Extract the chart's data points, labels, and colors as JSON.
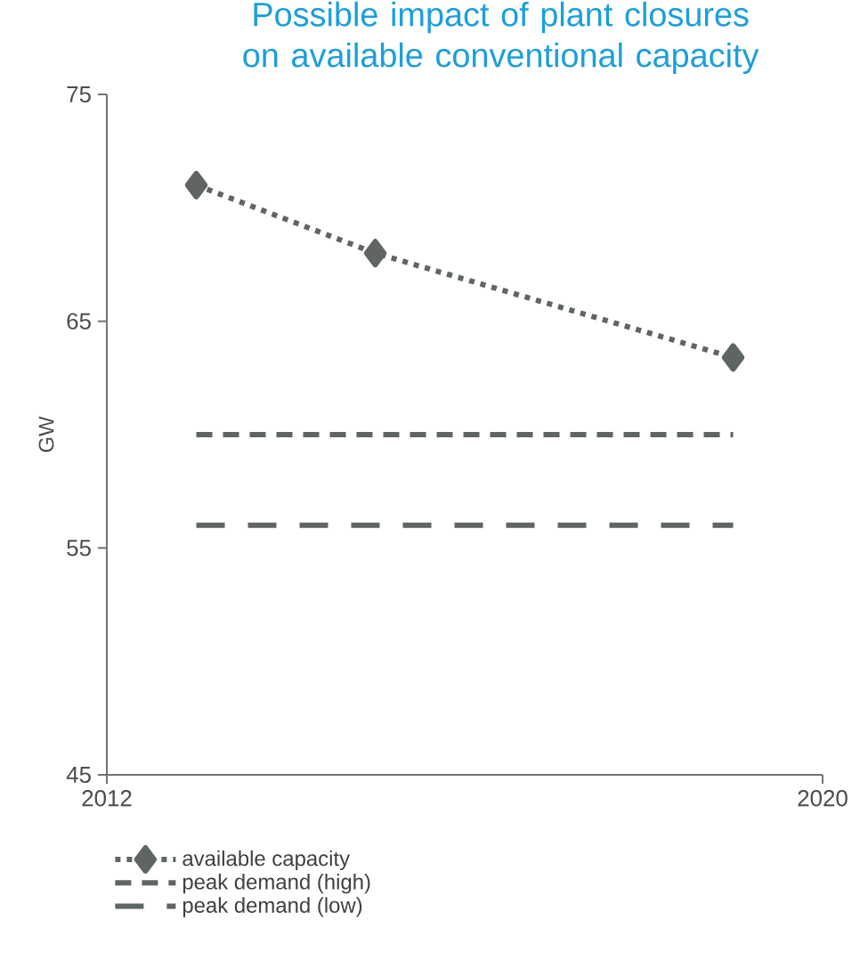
{
  "chart_data": {
    "type": "line",
    "title": "Possible impact of plant closures on available conventional capacity",
    "ylabel": "GW",
    "xlim": [
      2012,
      2020
    ],
    "xticks": [
      2012,
      2020
    ],
    "ylim": [
      45,
      75
    ],
    "yticks": [
      45,
      55,
      65,
      75
    ],
    "grid": false,
    "legend": "bottom left",
    "series": [
      {
        "name": "available capacity",
        "color": "#5f6563",
        "x": [
          2013,
          2015,
          2019
        ],
        "values": [
          71,
          68,
          63.4
        ],
        "marker": "diamond",
        "line_style": "dotted"
      },
      {
        "name": "peak demand (high)",
        "color": "#5f6563",
        "x": [
          2013,
          2019
        ],
        "values": [
          60,
          60
        ],
        "marker": "none",
        "line_style": "dashed"
      },
      {
        "name": "peak demand (low)",
        "color": "#5f6563",
        "x": [
          2013,
          2019
        ],
        "values": [
          56,
          56
        ],
        "marker": "none",
        "line_style": "dashed"
      }
    ]
  }
}
